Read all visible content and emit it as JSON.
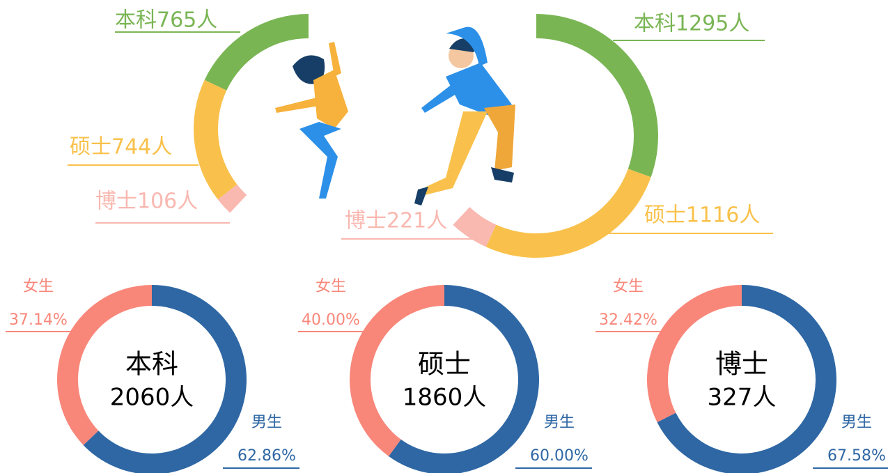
{
  "chart_data": [
    {
      "type": "donut-arc",
      "direction": "counterclockwise",
      "values": [
        765,
        744,
        106
      ],
      "value_labels": [
        "本科765人",
        "硕士744人",
        "博士106人"
      ],
      "colors": [
        "#7ab554",
        "#f9c14b",
        "#f9b8b0"
      ]
    },
    {
      "type": "donut-arc",
      "direction": "clockwise",
      "values": [
        1295,
        1116,
        221
      ],
      "value_labels": [
        "本科1295人",
        "硕士1116人",
        "博士221人"
      ],
      "colors": [
        "#7ab554",
        "#f9c14b",
        "#f9b8b0"
      ]
    },
    {
      "type": "donut",
      "center_title": "本科",
      "center_label": "2060人",
      "categories": [
        "男生",
        "女生"
      ],
      "values": [
        62.86,
        37.14
      ],
      "value_labels": [
        "62.86%",
        "37.14%"
      ],
      "colors": [
        "#2e67a4",
        "#f8877a"
      ]
    },
    {
      "type": "donut",
      "center_title": "硕士",
      "center_label": "1860人",
      "categories": [
        "男生",
        "女生"
      ],
      "values": [
        60.0,
        40.0
      ],
      "value_labels": [
        "60.00%",
        "40.00%"
      ],
      "colors": [
        "#2e67a4",
        "#f8877a"
      ]
    },
    {
      "type": "donut",
      "center_title": "博士",
      "center_label": "327人",
      "categories": [
        "男生",
        "女生"
      ],
      "values": [
        67.58,
        32.42
      ],
      "value_labels": [
        "67.58%",
        "32.42%"
      ],
      "colors": [
        "#2e67a4",
        "#f8877a"
      ]
    }
  ]
}
